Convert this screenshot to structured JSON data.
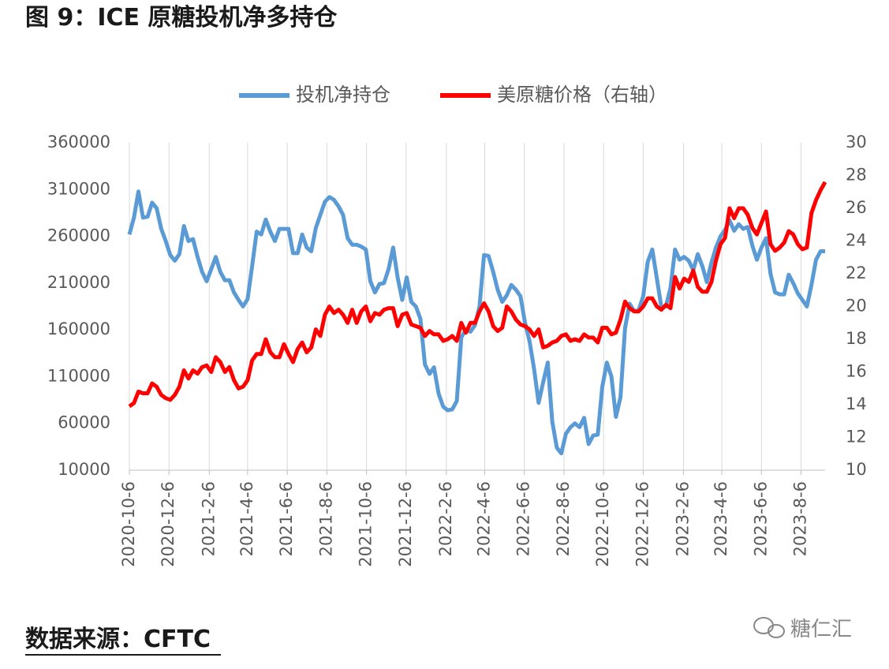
{
  "chart_data": {
    "type": "line",
    "title": "图 9：ICE 原糖投机净多持仓",
    "source": "数据来源：CFTC",
    "watermark": "糖仁汇",
    "legend": "top",
    "grid": "x",
    "x": [
      "2020-10-6",
      "2020-10-13",
      "2020-10-20",
      "2020-10-27",
      "2020-11-3",
      "2020-11-10",
      "2020-11-17",
      "2020-11-24",
      "2020-12-1",
      "2020-12-8",
      "2020-12-15",
      "2020-12-22",
      "2020-12-29",
      "2021-1-5",
      "2021-1-12",
      "2021-1-19",
      "2021-1-26",
      "2021-2-2",
      "2021-2-9",
      "2021-2-16",
      "2021-2-23",
      "2021-3-2",
      "2021-3-9",
      "2021-3-16",
      "2021-3-23",
      "2021-3-30",
      "2021-4-6",
      "2021-4-13",
      "2021-4-20",
      "2021-4-27",
      "2021-5-4",
      "2021-5-11",
      "2021-5-18",
      "2021-5-25",
      "2021-6-1",
      "2021-6-8",
      "2021-6-15",
      "2021-6-22",
      "2021-6-29",
      "2021-7-6",
      "2021-7-13",
      "2021-7-20",
      "2021-7-27",
      "2021-8-3",
      "2021-8-10",
      "2021-8-17",
      "2021-8-24",
      "2021-8-31",
      "2021-9-7",
      "2021-9-14",
      "2021-9-21",
      "2021-9-28",
      "2021-10-5",
      "2021-10-12",
      "2021-10-19",
      "2021-10-26",
      "2021-11-2",
      "2021-11-9",
      "2021-11-16",
      "2021-11-23",
      "2021-11-30",
      "2021-12-7",
      "2021-12-14",
      "2021-12-21",
      "2021-12-28",
      "2022-1-4",
      "2022-1-11",
      "2022-1-18",
      "2022-1-25",
      "2022-2-1",
      "2022-2-8",
      "2022-2-15",
      "2022-2-22",
      "2022-3-1",
      "2022-3-8",
      "2022-3-15",
      "2022-3-22",
      "2022-3-29",
      "2022-4-5",
      "2022-4-12",
      "2022-4-19",
      "2022-4-26",
      "2022-5-3",
      "2022-5-10",
      "2022-5-17",
      "2022-5-24",
      "2022-5-31",
      "2022-6-7",
      "2022-6-14",
      "2022-6-21",
      "2022-6-28",
      "2022-7-5",
      "2022-7-12",
      "2022-7-19",
      "2022-7-26",
      "2022-8-2",
      "2022-8-9",
      "2022-8-16",
      "2022-8-23",
      "2022-8-30",
      "2022-9-6",
      "2022-9-13",
      "2022-9-20",
      "2022-9-27",
      "2022-10-4",
      "2022-10-11",
      "2022-10-18",
      "2022-10-25",
      "2022-11-1",
      "2022-11-8",
      "2022-11-15",
      "2022-11-22",
      "2022-11-29",
      "2022-12-6",
      "2022-12-13",
      "2022-12-20",
      "2022-12-27",
      "2023-1-3",
      "2023-1-10",
      "2023-1-17",
      "2023-1-24",
      "2023-1-31",
      "2023-2-7",
      "2023-2-14",
      "2023-2-21",
      "2023-2-28",
      "2023-3-7",
      "2023-3-14",
      "2023-3-21",
      "2023-3-28",
      "2023-4-4",
      "2023-4-11",
      "2023-4-18",
      "2023-4-25",
      "2023-5-2",
      "2023-5-9",
      "2023-5-16",
      "2023-5-23",
      "2023-5-30",
      "2023-6-6",
      "2023-6-13",
      "2023-6-20",
      "2023-6-27",
      "2023-7-4",
      "2023-7-11",
      "2023-7-18",
      "2023-7-25",
      "2023-8-1",
      "2023-8-8",
      "2023-8-15",
      "2023-8-22",
      "2023-8-29",
      "2023-9-5",
      "2023-9-12"
    ],
    "xlim": [
      "2020-10-6",
      "2023-9-12"
    ],
    "xticks": [
      "2020-10-6",
      "2020-12-6",
      "2021-2-6",
      "2021-4-6",
      "2021-6-6",
      "2021-8-6",
      "2021-10-6",
      "2021-12-6",
      "2022-2-6",
      "2022-4-6",
      "2022-6-6",
      "2022-8-6",
      "2022-10-6",
      "2022-12-6",
      "2023-2-6",
      "2023-4-6",
      "2023-6-6",
      "2023-8-6"
    ],
    "ylim": [
      10000,
      360000
    ],
    "yticks": [
      10000,
      60000,
      110000,
      160000,
      210000,
      260000,
      310000,
      360000
    ],
    "y2lim": [
      10,
      30
    ],
    "y2ticks": [
      10,
      12,
      14,
      16,
      18,
      20,
      22,
      24,
      26,
      28,
      30
    ],
    "series": [
      {
        "name": "投机净持仓",
        "color": "#5b9bd5",
        "axis": "y",
        "values": [
          262000,
          280000,
          308000,
          280000,
          281000,
          296000,
          290000,
          268000,
          255000,
          240000,
          234000,
          241000,
          271000,
          255000,
          257000,
          238000,
          222000,
          212000,
          225000,
          238000,
          222000,
          213000,
          213000,
          200000,
          192000,
          185000,
          193000,
          228000,
          265000,
          262000,
          278000,
          265000,
          255000,
          268000,
          268000,
          268000,
          242000,
          242000,
          262000,
          248000,
          244000,
          269000,
          283000,
          297000,
          302000,
          299000,
          292000,
          283000,
          258000,
          251000,
          251000,
          249000,
          246000,
          212000,
          200000,
          209000,
          210000,
          225000,
          248000,
          216000,
          192000,
          216000,
          190000,
          185000,
          172000,
          123000,
          113000,
          120000,
          92000,
          78000,
          74000,
          75000,
          84000,
          152000,
          160000,
          158000,
          165000,
          185000,
          240000,
          239000,
          222000,
          203000,
          190000,
          197000,
          208000,
          203000,
          196000,
          168000,
          148000,
          118000,
          82000,
          104000,
          125000,
          62000,
          34000,
          28000,
          49000,
          56000,
          60000,
          56000,
          66000,
          38000,
          47000,
          48000,
          99000,
          125000,
          110000,
          67000,
          88000,
          162000,
          188000,
          180000,
          181000,
          196000,
          233000,
          246000,
          215000,
          184000,
          185000,
          205000,
          246000,
          235000,
          238000,
          234000,
          224000,
          241000,
          228000,
          211000,
          232000,
          248000,
          260000,
          267000,
          277000,
          266000,
          273000,
          268000,
          270000,
          250000,
          235000,
          248000,
          258000,
          220000,
          200000,
          198000,
          198000,
          219000,
          210000,
          199000,
          192000,
          185000,
          208000,
          235000,
          244000,
          244000
        ]
      },
      {
        "name": "美原糖价格（右轴）",
        "color": "#ff0000",
        "axis": "y2",
        "values": [
          13.9,
          14.1,
          14.8,
          14.7,
          14.7,
          15.3,
          15.1,
          14.6,
          14.4,
          14.3,
          14.6,
          15.1,
          16.1,
          15.6,
          16.1,
          15.9,
          16.3,
          16.4,
          16.0,
          16.9,
          16.6,
          16.0,
          16.3,
          15.5,
          15.0,
          15.1,
          15.5,
          16.7,
          17.1,
          17.1,
          18.0,
          17.2,
          16.9,
          16.9,
          17.7,
          17.1,
          16.6,
          17.4,
          17.8,
          17.2,
          17.5,
          18.6,
          18.2,
          19.5,
          20.0,
          19.6,
          19.8,
          19.5,
          19.0,
          19.8,
          19.0,
          19.7,
          20.0,
          19.1,
          19.6,
          19.5,
          19.8,
          19.9,
          19.9,
          18.8,
          19.5,
          19.6,
          18.9,
          18.8,
          18.7,
          18.2,
          18.5,
          18.3,
          18.3,
          17.9,
          18.0,
          18.2,
          17.9,
          19.0,
          18.4,
          19.0,
          19.0,
          19.7,
          20.2,
          19.7,
          18.8,
          18.5,
          18.7,
          20.0,
          19.7,
          19.2,
          18.9,
          18.8,
          18.6,
          18.2,
          18.6,
          17.5,
          17.6,
          17.8,
          17.9,
          18.2,
          18.3,
          17.9,
          18.0,
          17.9,
          18.3,
          18.1,
          18.1,
          17.8,
          18.7,
          18.7,
          18.3,
          18.4,
          19.2,
          20.3,
          19.9,
          19.7,
          19.7,
          20.0,
          20.5,
          20.5,
          20.0,
          19.8,
          20.1,
          19.9,
          21.8,
          21.1,
          21.7,
          21.5,
          22.2,
          21.2,
          20.9,
          20.9,
          21.5,
          22.8,
          23.8,
          24.2,
          26.0,
          25.4,
          26.0,
          26.0,
          25.6,
          24.8,
          24.4,
          25.1,
          25.8,
          23.8,
          23.4,
          23.6,
          23.9,
          24.6,
          24.4,
          23.8,
          23.5,
          23.6,
          25.7,
          26.5,
          27.1,
          27.6
        ]
      }
    ]
  }
}
